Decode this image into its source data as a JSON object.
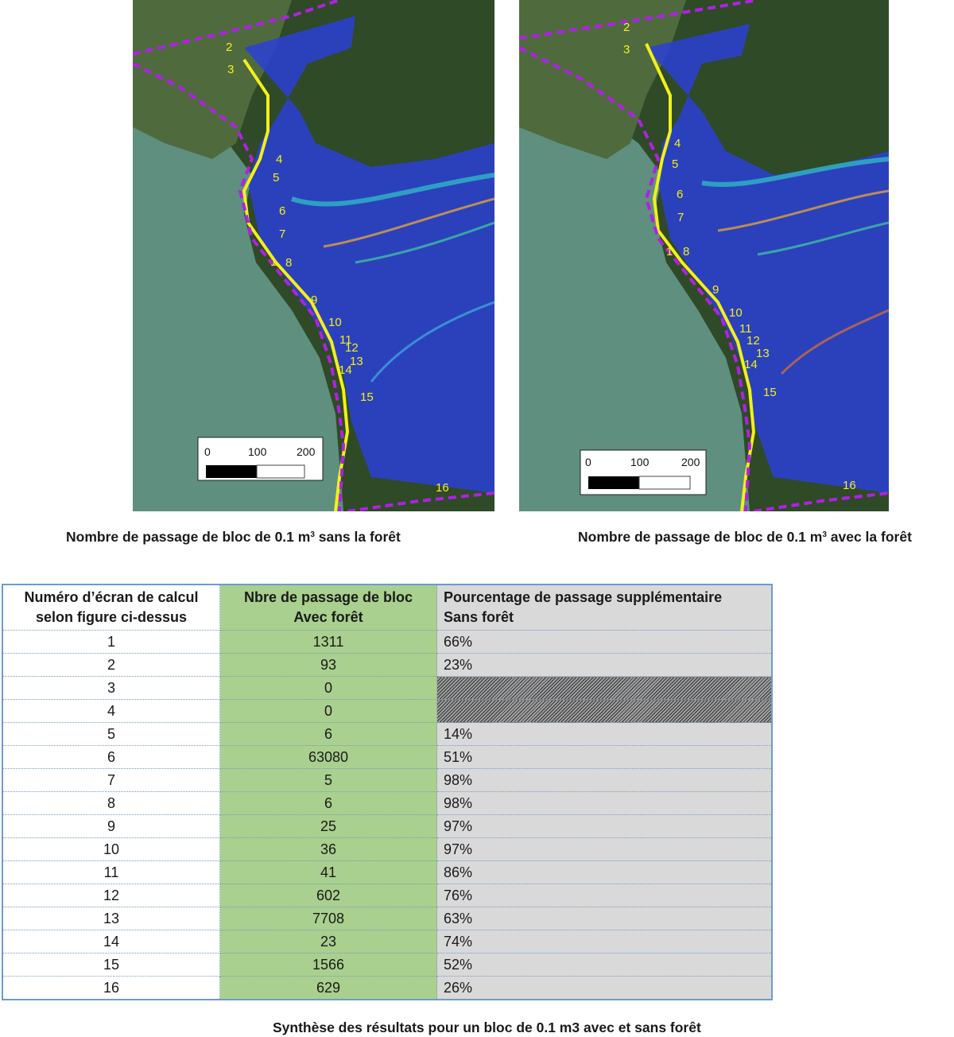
{
  "maps": {
    "left": {
      "caption_prefix": "Nombre de passage de bloc de 0.1 m",
      "caption_sup": "3",
      "caption_suffix": " sans la forêt",
      "scale_labels": [
        "0",
        "100",
        "200"
      ]
    },
    "right": {
      "caption_prefix": "Nombre de passage de bloc de 0.1 m",
      "caption_sup": "3",
      "caption_suffix": " avec la forêt",
      "scale_labels": [
        "0",
        "100",
        "200"
      ]
    },
    "site_numbers": [
      "1",
      "2",
      "3",
      "4",
      "5",
      "6",
      "7",
      "8",
      "9",
      "10",
      "11",
      "12",
      "13",
      "14",
      "15",
      "16"
    ],
    "colors": {
      "lake": "#5e8f7f",
      "forest": "#2f4a26",
      "flow": "#2a3fd6",
      "road": "#f2f01a",
      "perimeter": "#b020e8"
    }
  },
  "table": {
    "headers": [
      [
        "Numéro d’écran de calcul",
        "selon figure ci-dessus"
      ],
      [
        "Nbre de passage de bloc",
        "Avec forêt"
      ],
      [
        "Pourcentage de passage supplémentaire",
        "Sans forêt"
      ]
    ],
    "rows": [
      {
        "num": "1",
        "count": "1311",
        "pct": "66%"
      },
      {
        "num": "2",
        "count": "93",
        "pct": "23%"
      },
      {
        "num": "3",
        "count": "0",
        "pct": ""
      },
      {
        "num": "4",
        "count": "0",
        "pct": ""
      },
      {
        "num": "5",
        "count": "6",
        "pct": "14%"
      },
      {
        "num": "6",
        "count": "63080",
        "pct": "51%"
      },
      {
        "num": "7",
        "count": "5",
        "pct": "98%"
      },
      {
        "num": "8",
        "count": "6",
        "pct": "98%"
      },
      {
        "num": "9",
        "count": "25",
        "pct": "97%"
      },
      {
        "num": "10",
        "count": "36",
        "pct": "97%"
      },
      {
        "num": "11",
        "count": "41",
        "pct": "86%"
      },
      {
        "num": "12",
        "count": "602",
        "pct": "76%"
      },
      {
        "num": "13",
        "count": "7708",
        "pct": "63%"
      },
      {
        "num": "14",
        "count": "23",
        "pct": "74%"
      },
      {
        "num": "15",
        "count": "1566",
        "pct": "52%"
      },
      {
        "num": "16",
        "count": "629",
        "pct": "26%"
      }
    ]
  },
  "bottom_caption": "Synthèse des résultats pour un bloc de 0.1 m3 avec et sans forêt"
}
